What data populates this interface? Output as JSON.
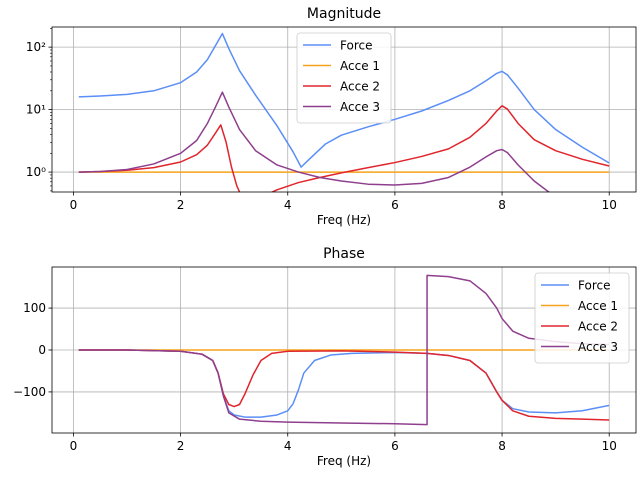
{
  "chart_data": [
    {
      "type": "line",
      "title": "Magnitude",
      "xlabel": "Freq (Hz)",
      "ylabel": "",
      "yscale": "log",
      "xlim": [
        -0.4,
        10.5
      ],
      "ylim": [
        0.48,
        210
      ],
      "xticks": [
        0,
        2,
        4,
        6,
        8,
        10
      ],
      "xtick_labels": [
        "0",
        "2",
        "4",
        "6",
        "8",
        "10"
      ],
      "yticks": [
        1,
        10,
        100
      ],
      "ytick_labels": [
        "10⁰",
        "10¹",
        "10²"
      ],
      "grid": true,
      "legend": "top-center",
      "series": [
        {
          "name": "Force",
          "color": "#5B8EF7",
          "x": [
            0.1,
            0.5,
            1.0,
            1.5,
            2.0,
            2.3,
            2.5,
            2.65,
            2.78,
            2.9,
            3.1,
            3.4,
            3.8,
            4.1,
            4.25,
            4.4,
            4.7,
            5.0,
            5.5,
            6.0,
            6.5,
            7.0,
            7.4,
            7.7,
            7.9,
            8.0,
            8.1,
            8.3,
            8.6,
            9.0,
            9.5,
            10.0
          ],
          "values": [
            16,
            16.5,
            17.5,
            20,
            27,
            40,
            63,
            105,
            165,
            95,
            42,
            17,
            5.5,
            2.1,
            1.2,
            1.6,
            2.8,
            3.9,
            5.3,
            7,
            9.5,
            14,
            20,
            29,
            38,
            41,
            36,
            22,
            10,
            4.8,
            2.5,
            1.4
          ]
        },
        {
          "name": "Acce 1",
          "color": "#F5A31A",
          "x": [
            0.1,
            10.0
          ],
          "values": [
            1.0,
            1.0
          ]
        },
        {
          "name": "Acce 2",
          "color": "#E0252C",
          "x": [
            0.1,
            0.5,
            1.0,
            1.5,
            2.0,
            2.3,
            2.5,
            2.65,
            2.75,
            2.85,
            2.95,
            3.05,
            3.12,
            3.4,
            3.8,
            4.2,
            4.6,
            5.0,
            5.5,
            6.0,
            6.5,
            7.0,
            7.4,
            7.7,
            7.9,
            8.0,
            8.1,
            8.3,
            8.6,
            9.0,
            9.5,
            10.0
          ],
          "values": [
            1.0,
            1.02,
            1.07,
            1.18,
            1.45,
            1.9,
            2.7,
            4.2,
            5.7,
            3.0,
            1.2,
            0.6,
            0.44,
            0.36,
            0.52,
            0.68,
            0.82,
            0.97,
            1.18,
            1.42,
            1.78,
            2.35,
            3.6,
            6.0,
            9.5,
            11.5,
            10.2,
            6.0,
            3.3,
            2.2,
            1.6,
            1.25
          ]
        },
        {
          "name": "Acce 3",
          "color": "#8E3F8E",
          "x": [
            0.1,
            0.5,
            1.0,
            1.5,
            2.0,
            2.3,
            2.5,
            2.65,
            2.78,
            2.9,
            3.1,
            3.4,
            3.8,
            4.2,
            4.6,
            5.0,
            5.5,
            6.0,
            6.5,
            7.0,
            7.4,
            7.7,
            7.9,
            8.0,
            8.1,
            8.3,
            8.6,
            8.9,
            9.2
          ],
          "values": [
            1.0,
            1.02,
            1.1,
            1.35,
            2.0,
            3.2,
            6.0,
            11.0,
            19.0,
            11.0,
            4.8,
            2.2,
            1.3,
            1.0,
            0.82,
            0.72,
            0.64,
            0.62,
            0.66,
            0.82,
            1.2,
            1.75,
            2.2,
            2.3,
            2.05,
            1.3,
            0.72,
            0.46,
            0.3
          ]
        }
      ]
    },
    {
      "type": "line",
      "title": "Phase",
      "xlabel": "Freq (Hz)",
      "ylabel": "",
      "yscale": "linear",
      "xlim": [
        -0.4,
        10.5
      ],
      "ylim": [
        -198,
        198
      ],
      "xticks": [
        0,
        2,
        4,
        6,
        8,
        10
      ],
      "xtick_labels": [
        "0",
        "2",
        "4",
        "6",
        "8",
        "10"
      ],
      "yticks": [
        -100,
        0,
        100
      ],
      "ytick_labels": [
        "−100",
        "0",
        "100"
      ],
      "grid": true,
      "legend": "top-right",
      "series": [
        {
          "name": "Force",
          "color": "#5B8EF7",
          "x": [
            0.1,
            1.0,
            2.0,
            2.4,
            2.6,
            2.7,
            2.8,
            2.9,
            3.0,
            3.2,
            3.5,
            3.8,
            4.0,
            4.1,
            4.2,
            4.3,
            4.5,
            4.8,
            5.2,
            6.0,
            6.6,
            7.0,
            7.4,
            7.7,
            7.9,
            8.0,
            8.2,
            8.5,
            9.0,
            9.5,
            10.0
          ],
          "values": [
            0,
            0,
            -3,
            -10,
            -25,
            -55,
            -110,
            -145,
            -155,
            -160,
            -160,
            -155,
            -145,
            -128,
            -95,
            -55,
            -25,
            -12,
            -8,
            -6,
            -8,
            -13,
            -25,
            -55,
            -100,
            -120,
            -140,
            -148,
            -150,
            -145,
            -132
          ]
        },
        {
          "name": "Acce 1",
          "color": "#F5A31A",
          "x": [
            0.1,
            10.0
          ],
          "values": [
            0,
            0
          ]
        },
        {
          "name": "Acce 2",
          "color": "#E0252C",
          "x": [
            0.1,
            1.0,
            2.0,
            2.4,
            2.6,
            2.7,
            2.8,
            2.9,
            3.0,
            3.1,
            3.2,
            3.35,
            3.5,
            3.7,
            4.0,
            5.0,
            6.0,
            6.6,
            7.0,
            7.4,
            7.7,
            7.9,
            8.0,
            8.2,
            8.5,
            9.0,
            9.5,
            10.0
          ],
          "values": [
            0,
            0,
            -3,
            -10,
            -25,
            -55,
            -105,
            -130,
            -135,
            -130,
            -105,
            -60,
            -25,
            -8,
            -3,
            -2,
            -5,
            -8,
            -13,
            -25,
            -55,
            -100,
            -120,
            -145,
            -158,
            -163,
            -165,
            -167
          ]
        },
        {
          "name": "Acce 3",
          "color": "#8E3F8E",
          "x": [
            0.1,
            1.0,
            2.0,
            2.4,
            2.6,
            2.7,
            2.8,
            2.9,
            3.1,
            3.5,
            4.0,
            5.0,
            6.0,
            6.6,
            6.6,
            7.0,
            7.4,
            7.7,
            7.9,
            8.0,
            8.2,
            8.5,
            9.0,
            9.5,
            10.0
          ],
          "values": [
            0,
            0,
            -3,
            -10,
            -25,
            -55,
            -110,
            -150,
            -165,
            -170,
            -172,
            -174,
            -176,
            -178,
            178,
            175,
            165,
            135,
            100,
            75,
            45,
            28,
            20,
            15,
            13
          ]
        }
      ]
    }
  ]
}
